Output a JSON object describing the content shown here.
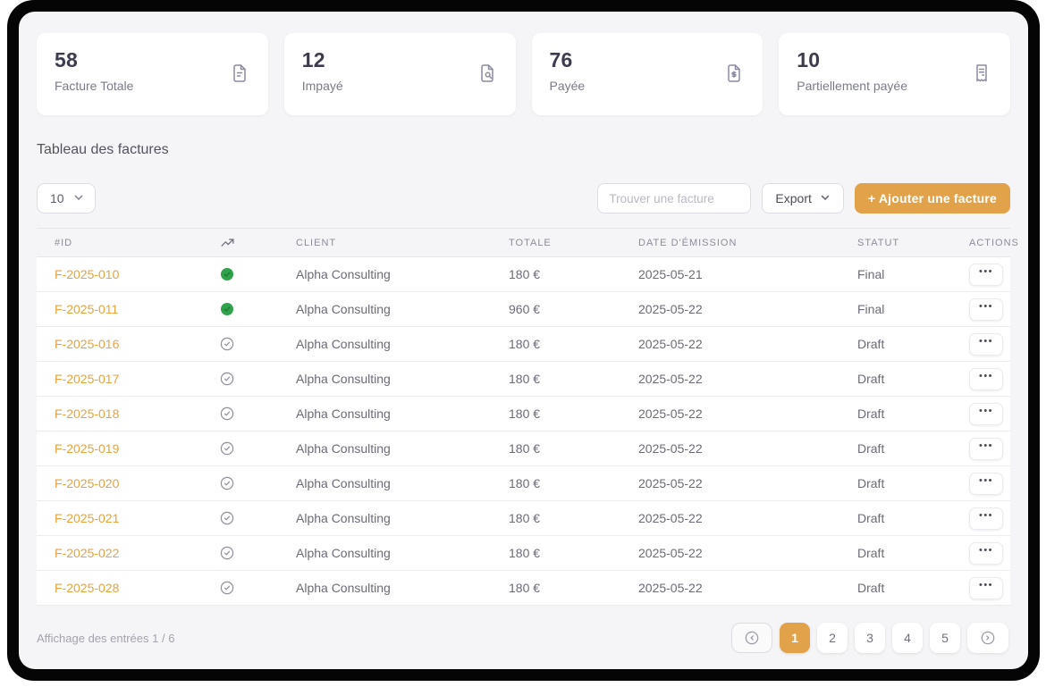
{
  "cards": [
    {
      "value": "58",
      "label": "Facture Totale",
      "icon": "file-text-icon"
    },
    {
      "value": "12",
      "label": "Impayé",
      "icon": "file-search-icon"
    },
    {
      "value": "76",
      "label": "Payée",
      "icon": "file-dollar-icon"
    },
    {
      "value": "10",
      "label": "Partiellement payée",
      "icon": "receipt-icon"
    }
  ],
  "table_section": {
    "title": "Tableau des factures",
    "page_size": "10",
    "search_placeholder": "Trouver une facture",
    "export_label": "Export",
    "add_button_label": "+ Ajouter une facture"
  },
  "table": {
    "headers": {
      "id": "#ID",
      "trend": "trending-up-icon",
      "client": "CLIENT",
      "total": "TOTALE",
      "date": "DATE D'ÉMISSION",
      "statut": "STATUT",
      "actions": "ACTIONS"
    },
    "rows": [
      {
        "id": "F-2025-010",
        "status_icon": "green-filled-check",
        "client": "Alpha Consulting",
        "total": "180 €",
        "date": "2025-05-21",
        "statut": "Final",
        "actions": "•••"
      },
      {
        "id": "F-2025-011",
        "status_icon": "green-filled-check",
        "client": "Alpha Consulting",
        "total": "960 €",
        "date": "2025-05-22",
        "statut": "Final",
        "actions": "•••"
      },
      {
        "id": "F-2025-016",
        "status_icon": "outline-check",
        "client": "Alpha Consulting",
        "total": "180 €",
        "date": "2025-05-22",
        "statut": "Draft",
        "actions": "•••"
      },
      {
        "id": "F-2025-017",
        "status_icon": "outline-check",
        "client": "Alpha Consulting",
        "total": "180 €",
        "date": "2025-05-22",
        "statut": "Draft",
        "actions": "•••"
      },
      {
        "id": "F-2025-018",
        "status_icon": "outline-check",
        "client": "Alpha Consulting",
        "total": "180 €",
        "date": "2025-05-22",
        "statut": "Draft",
        "actions": "•••"
      },
      {
        "id": "F-2025-019",
        "status_icon": "outline-check",
        "client": "Alpha Consulting",
        "total": "180 €",
        "date": "2025-05-22",
        "statut": "Draft",
        "actions": "•••"
      },
      {
        "id": "F-2025-020",
        "status_icon": "outline-check",
        "client": "Alpha Consulting",
        "total": "180 €",
        "date": "2025-05-22",
        "statut": "Draft",
        "actions": "•••"
      },
      {
        "id": "F-2025-021",
        "status_icon": "outline-check",
        "client": "Alpha Consulting",
        "total": "180 €",
        "date": "2025-05-22",
        "statut": "Draft",
        "actions": "•••"
      },
      {
        "id": "F-2025-022",
        "status_icon": "outline-check",
        "client": "Alpha Consulting",
        "total": "180 €",
        "date": "2025-05-22",
        "statut": "Draft",
        "actions": "•••"
      },
      {
        "id": "F-2025-028",
        "status_icon": "outline-check",
        "client": "Alpha Consulting",
        "total": "180 €",
        "date": "2025-05-22",
        "statut": "Draft",
        "actions": "•••"
      }
    ]
  },
  "footer": {
    "entries_info": "Affichage des entrées 1 / 6",
    "pages": [
      "1",
      "2",
      "3",
      "4",
      "5"
    ],
    "active_page": "1"
  },
  "colors": {
    "accent_orange": "#E1A24A",
    "id_orange": "#E8A23E",
    "status_green": "#2FA24B",
    "app_background": "#F5F5F7",
    "frame_black": "#050505"
  }
}
